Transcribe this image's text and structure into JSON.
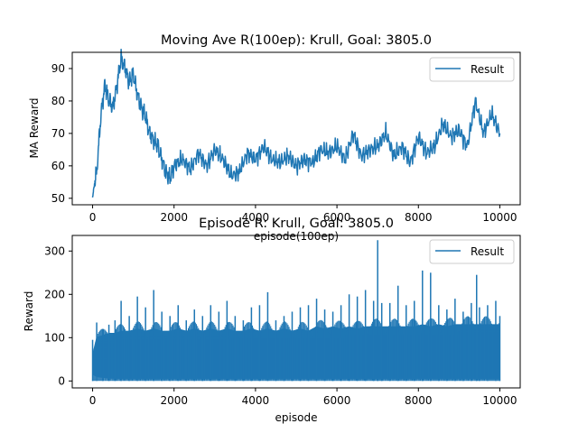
{
  "chart_data": [
    {
      "type": "line",
      "title": "Moving Ave R(100ep): Krull, Goal: 3805.0",
      "xlabel": "episode(100ep)",
      "ylabel": "MA Reward",
      "xlim": [
        -500,
        10500
      ],
      "ylim": [
        48,
        95
      ],
      "xticks": [
        0,
        2000,
        4000,
        6000,
        8000,
        10000
      ],
      "yticks": [
        50,
        60,
        70,
        80,
        90
      ],
      "legend_position": "top-right",
      "grid": false,
      "series": [
        {
          "name": "Result",
          "color": "#1f77b4",
          "x": [
            0,
            50,
            100,
            200,
            300,
            400,
            500,
            600,
            700,
            800,
            900,
            1000,
            1100,
            1200,
            1300,
            1400,
            1500,
            1600,
            1700,
            1800,
            1900,
            2000,
            2200,
            2400,
            2600,
            2800,
            3000,
            3200,
            3400,
            3600,
            3800,
            4000,
            4200,
            4400,
            4600,
            4800,
            5000,
            5200,
            5400,
            5600,
            5800,
            6000,
            6200,
            6400,
            6600,
            6800,
            7000,
            7200,
            7400,
            7600,
            7800,
            8000,
            8200,
            8400,
            8600,
            8800,
            9000,
            9200,
            9400,
            9600,
            9800,
            10000
          ],
          "values": [
            50,
            55,
            58,
            75,
            85,
            80,
            78,
            85,
            93,
            90,
            86,
            88,
            82,
            78,
            75,
            70,
            68,
            66,
            62,
            58,
            56,
            60,
            62,
            59,
            64,
            60,
            65,
            62,
            57,
            58,
            64,
            62,
            66,
            62,
            61,
            63,
            60,
            62,
            61,
            65,
            64,
            66,
            62,
            70,
            63,
            65,
            66,
            70,
            63,
            66,
            61,
            69,
            64,
            66,
            73,
            69,
            71,
            66,
            80,
            70,
            76,
            70
          ]
        }
      ]
    },
    {
      "type": "line",
      "title": "Episode R: Krull, Goal: 3805.0",
      "xlabel": "episode",
      "ylabel": "Reward",
      "xlim": [
        -500,
        10500
      ],
      "ylim": [
        -16,
        336
      ],
      "xticks": [
        0,
        2000,
        4000,
        6000,
        8000,
        10000
      ],
      "yticks": [
        0,
        100,
        200,
        300
      ],
      "legend_position": "top-right",
      "grid": false,
      "series": [
        {
          "name": "Result",
          "color": "#1f77b4",
          "x": [
            0,
            100,
            250,
            400,
            550,
            700,
            900,
            1100,
            1300,
            1500,
            1700,
            1900,
            2100,
            2300,
            2500,
            2700,
            2900,
            3100,
            3300,
            3500,
            3700,
            3900,
            4100,
            4300,
            4500,
            4700,
            4900,
            5100,
            5300,
            5500,
            5700,
            5900,
            6100,
            6300,
            6500,
            6700,
            6900,
            7000,
            7100,
            7300,
            7500,
            7700,
            7900,
            8100,
            8300,
            8500,
            8700,
            8900,
            9100,
            9300,
            9430,
            9500,
            9700,
            9900,
            10000
          ],
          "upper": [
            95,
            135,
            120,
            130,
            140,
            185,
            150,
            195,
            170,
            210,
            160,
            150,
            175,
            140,
            165,
            150,
            175,
            160,
            185,
            150,
            140,
            170,
            175,
            205,
            140,
            150,
            160,
            170,
            175,
            190,
            165,
            160,
            175,
            200,
            195,
            210,
            185,
            325,
            180,
            180,
            220,
            175,
            185,
            255,
            250,
            175,
            165,
            190,
            160,
            180,
            245,
            170,
            175,
            185,
            150
          ],
          "lower": [
            0,
            0,
            0,
            0,
            0,
            0,
            0,
            0,
            0,
            0,
            0,
            0,
            0,
            0,
            0,
            0,
            0,
            0,
            0,
            0,
            0,
            0,
            0,
            0,
            0,
            0,
            0,
            0,
            0,
            0,
            0,
            0,
            0,
            0,
            0,
            0,
            0,
            0,
            0,
            0,
            0,
            0,
            0,
            0,
            0,
            0,
            0,
            0,
            0,
            0,
            0,
            0,
            0,
            0,
            0
          ],
          "band_top": [
            60,
            100,
            105,
            110,
            110,
            115,
            115,
            120,
            115,
            120,
            115,
            115,
            120,
            115,
            120,
            115,
            120,
            115,
            120,
            115,
            115,
            120,
            115,
            120,
            115,
            120,
            115,
            120,
            115,
            125,
            120,
            125,
            120,
            125,
            120,
            125,
            125,
            125,
            125,
            125,
            125,
            125,
            125,
            130,
            125,
            130,
            125,
            130,
            130,
            130,
            130,
            130,
            130,
            130,
            130
          ],
          "band_bottom": [
            15,
            10,
            8,
            6,
            6,
            5,
            5,
            5,
            5,
            5,
            5,
            5,
            5,
            5,
            5,
            5,
            5,
            5,
            5,
            5,
            5,
            5,
            5,
            5,
            5,
            5,
            5,
            5,
            5,
            5,
            5,
            5,
            5,
            5,
            5,
            5,
            5,
            5,
            5,
            5,
            5,
            5,
            5,
            5,
            5,
            5,
            5,
            5,
            5,
            5,
            5,
            5,
            5,
            5,
            5
          ]
        }
      ]
    }
  ]
}
